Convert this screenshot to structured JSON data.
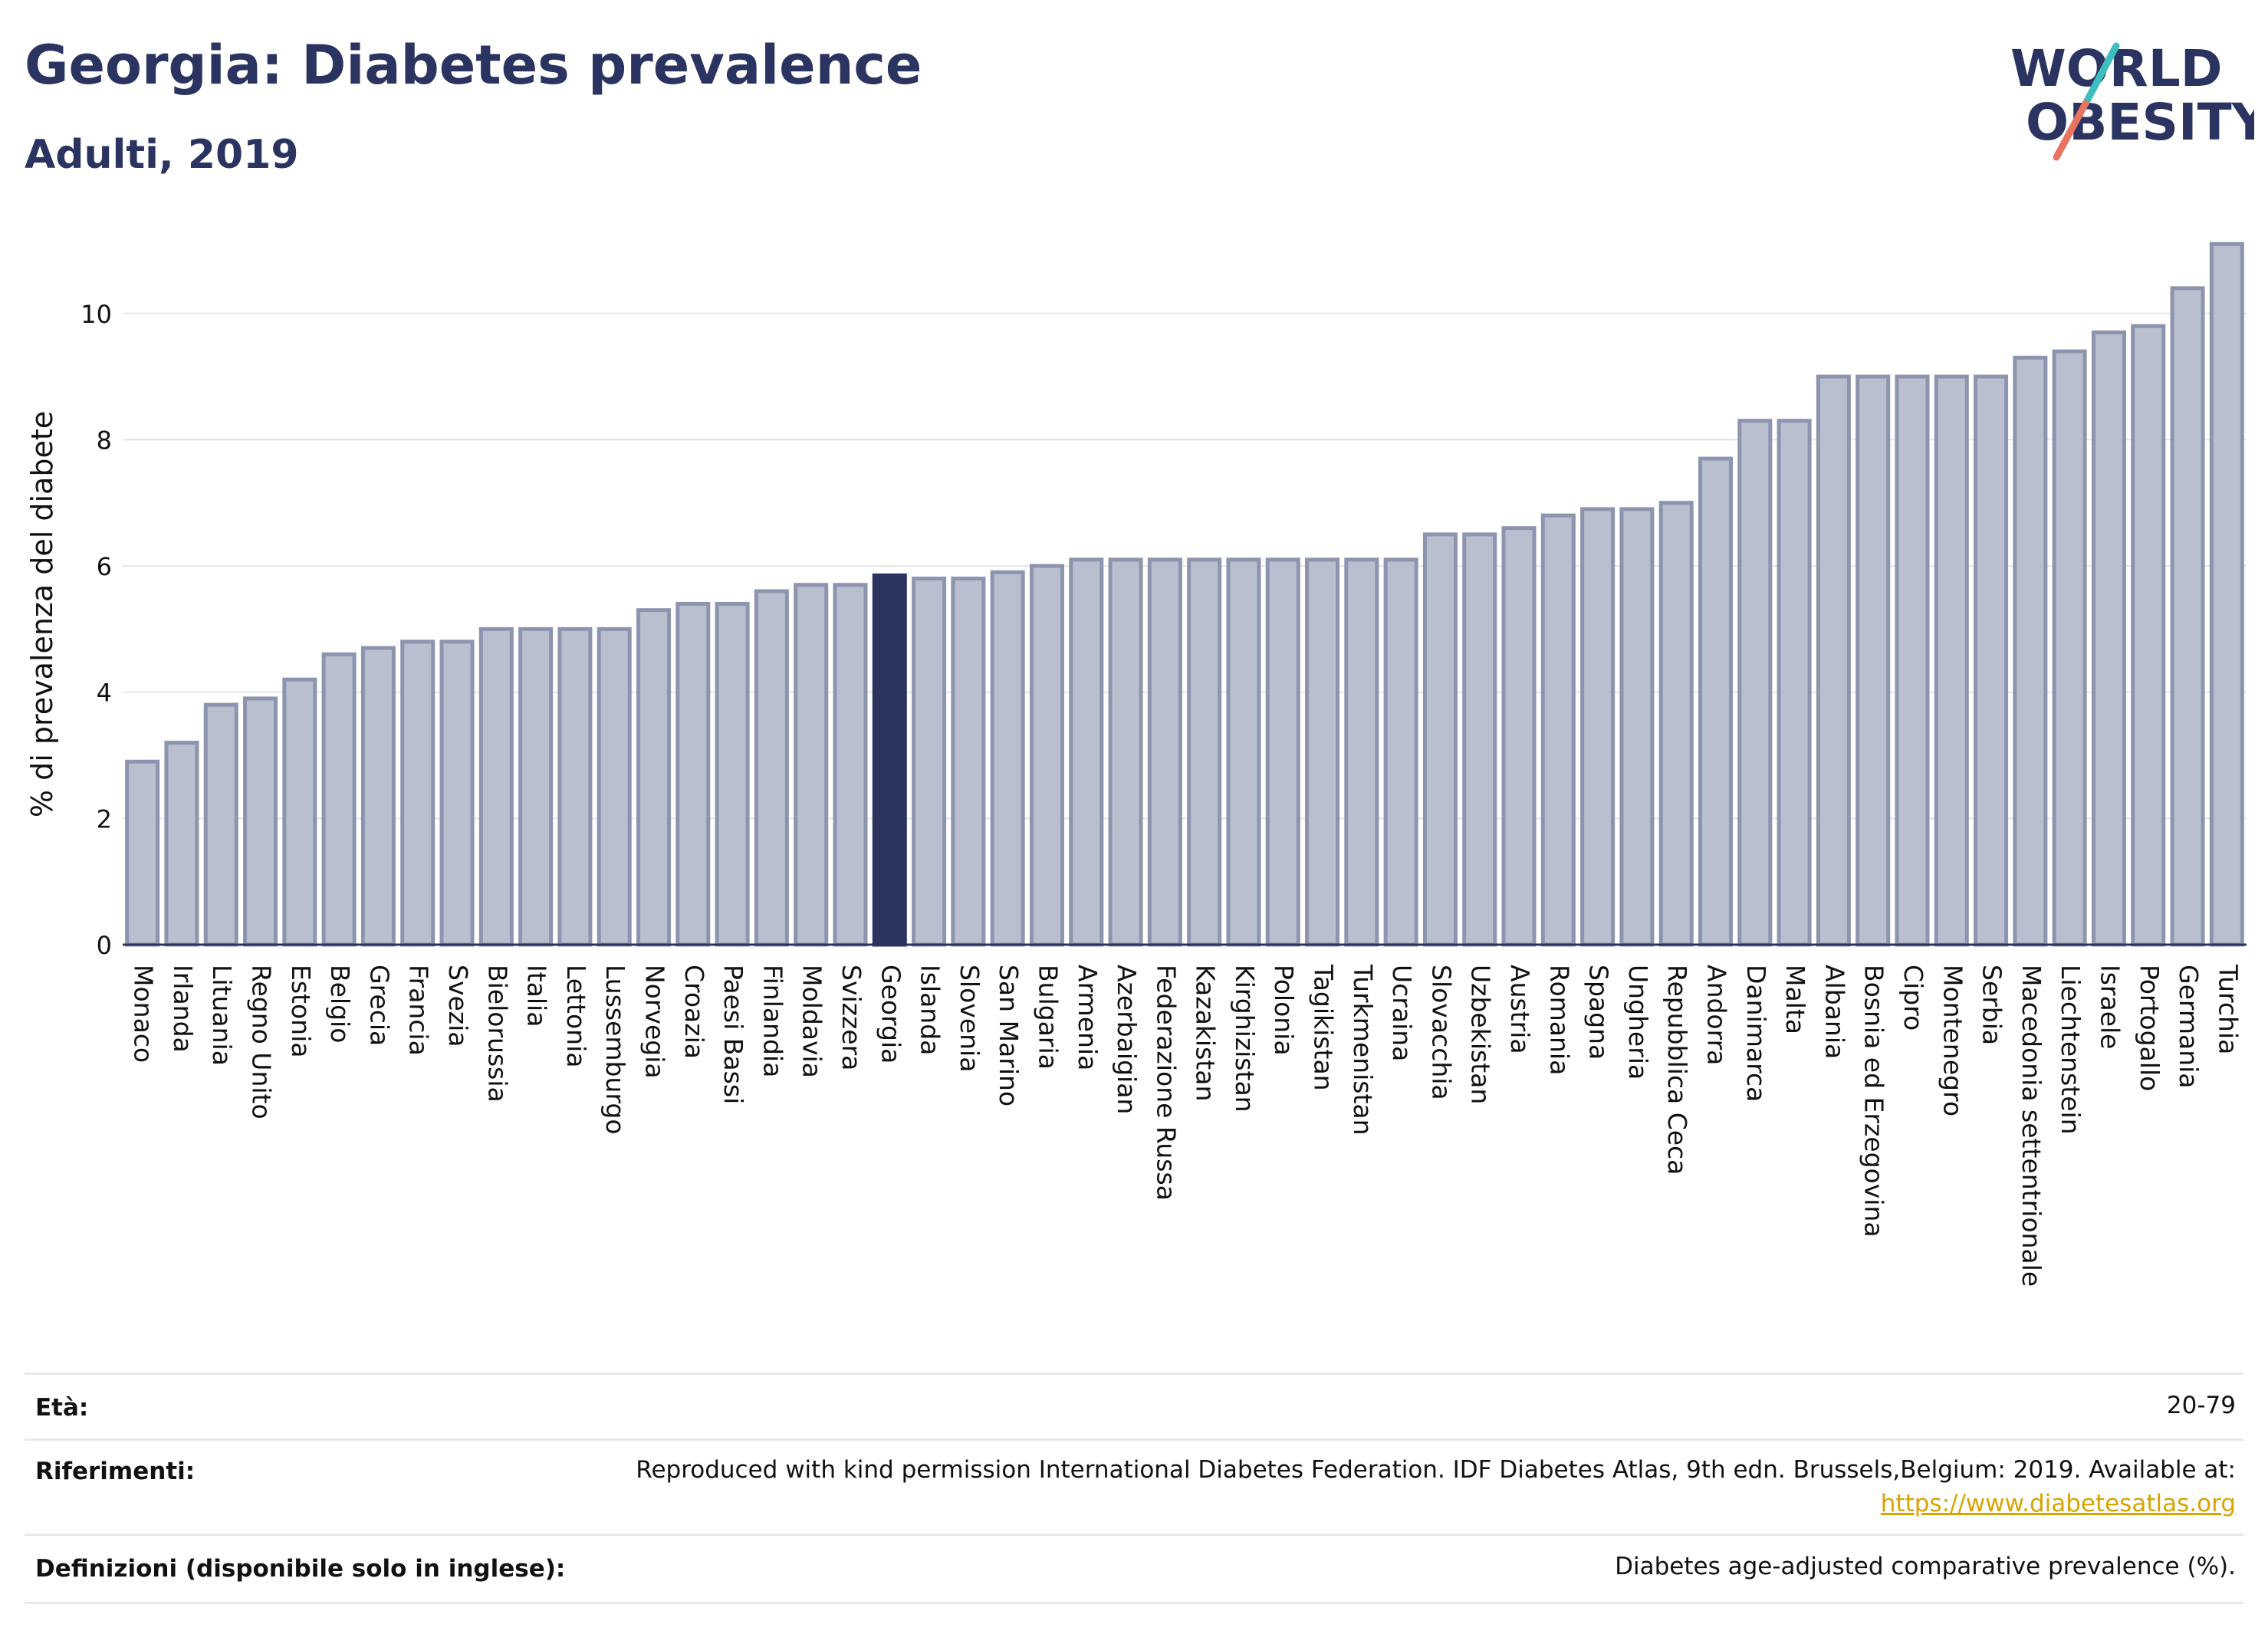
{
  "header": {
    "title": "Georgia: Diabetes prevalence",
    "subtitle": "Adulti, 2019",
    "logo_line1": "WORLD",
    "logo_line2": "OBESITY"
  },
  "colors": {
    "highlight_bar": "#2b3460",
    "bar_fill": "#babfcf",
    "bar_stroke": "#8d94ad",
    "title": "#2b3460",
    "logo_teal": "#3cbfbe",
    "logo_coral": "#e8735f",
    "link": "#d9a400"
  },
  "chart_data": {
    "type": "bar",
    "ylabel": "% di prevalenza del diabete",
    "xlabel": "",
    "ylim": [
      0,
      11.2
    ],
    "yticks": [
      0,
      2,
      4,
      6,
      8,
      10
    ],
    "grid": true,
    "highlight": "Georgia",
    "categories": [
      "Monaco",
      "Irlanda",
      "Lituania",
      "Regno Unito",
      "Estonia",
      "Belgio",
      "Grecia",
      "Francia",
      "Svezia",
      "Bielorussia",
      "Italia",
      "Lettonia",
      "Lussemburgo",
      "Norvegia",
      "Croazia",
      "Paesi Bassi",
      "Finlandia",
      "Moldavia",
      "Svizzera",
      "Georgia",
      "Islanda",
      "Slovenia",
      "San Marino",
      "Bulgaria",
      "Armenia",
      "Azerbaigian",
      "Federazione Russa",
      "Kazakistan",
      "Kirghizistan",
      "Polonia",
      "Tagikistan",
      "Turkmenistan",
      "Ucraina",
      "Slovacchia",
      "Uzbekistan",
      "Austria",
      "Romania",
      "Spagna",
      "Ungheria",
      "Repubblica Ceca",
      "Andorra",
      "Danimarca",
      "Malta",
      "Albania",
      "Bosnia ed Erzegovina",
      "Cipro",
      "Montenegro",
      "Serbia",
      "Macedonia settentrionale",
      "Liechtenstein",
      "Israele",
      "Portogallo",
      "Germania",
      "Turchia"
    ],
    "values": [
      2.9,
      3.2,
      3.8,
      3.9,
      4.2,
      4.6,
      4.7,
      4.8,
      4.8,
      5.0,
      5.0,
      5.0,
      5.0,
      5.3,
      5.4,
      5.4,
      5.6,
      5.7,
      5.7,
      5.85,
      5.8,
      5.8,
      5.9,
      6.0,
      6.1,
      6.1,
      6.1,
      6.1,
      6.1,
      6.1,
      6.1,
      6.1,
      6.1,
      6.5,
      6.5,
      6.6,
      6.8,
      6.9,
      6.9,
      7.0,
      7.7,
      8.3,
      8.3,
      9.0,
      9.0,
      9.0,
      9.0,
      9.0,
      9.3,
      9.4,
      9.7,
      9.8,
      10.4,
      11.1
    ]
  },
  "meta": {
    "age_label": "Età:",
    "age_value": "20-79",
    "refs_label": "Riferimenti:",
    "refs_text": "Reproduced with kind permission International Diabetes Federation. IDF Diabetes Atlas, 9th edn. Brussels,Belgium: 2019. Available at:",
    "refs_link": "https://www.diabetesatlas.org",
    "defs_label": "Definizioni (disponibile solo in inglese):",
    "defs_value": "Diabetes age-adjusted comparative prevalence (%)."
  }
}
